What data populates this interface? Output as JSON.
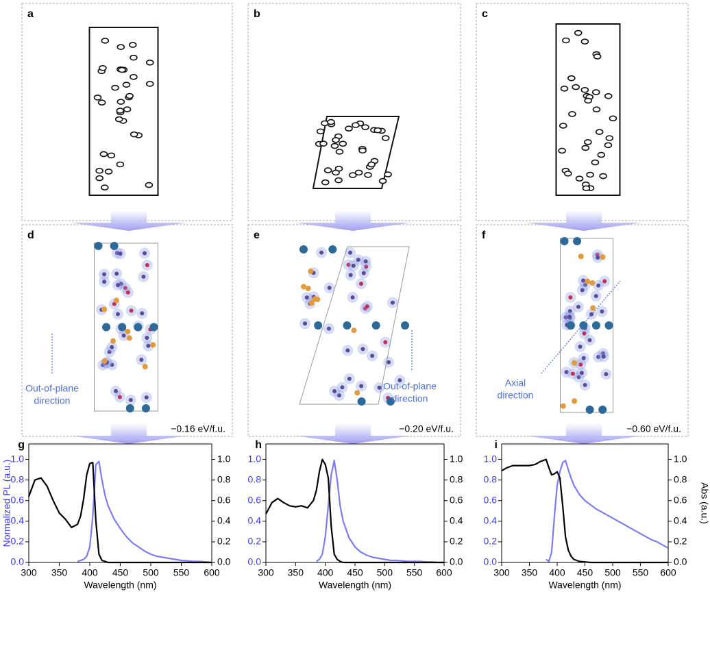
{
  "panels": [
    {
      "label": "a"
    },
    {
      "label": "b"
    },
    {
      "label": "c"
    },
    {
      "label": "d",
      "direction": [
        "Out-of-plane",
        "direction"
      ],
      "energy": "−0.16 eV/f.u."
    },
    {
      "label": "e",
      "direction": [
        "Out-of-plane",
        "direction"
      ],
      "energy": "−0.20 eV/f.u."
    },
    {
      "label": "f",
      "direction": [
        "Axial",
        "direction"
      ],
      "energy": "−0.60 eV/f.u."
    }
  ],
  "chart_data": [
    {
      "type": "line",
      "panel_label": "g",
      "xlabel": "Wavelength (nm)",
      "ylabel": "Normalized PL (a.u.)",
      "xlim": [
        300,
        600
      ],
      "xticks": [
        300,
        350,
        400,
        450,
        500,
        550,
        600
      ],
      "ylim": [
        0,
        1.15
      ],
      "yticks": [
        {
          "value": 0,
          "label": "0.0"
        },
        0.2,
        0.4,
        0.6,
        0.8,
        {
          "value": 1,
          "label": "1.0"
        }
      ],
      "y2lim": [
        0,
        1.15
      ],
      "y2ticks": [
        {
          "value": 0,
          "label": "0.0"
        },
        0.2,
        0.4,
        0.6,
        0.8,
        {
          "value": 1,
          "label": "1.0"
        }
      ],
      "x": [
        300,
        310,
        320,
        330,
        340,
        350,
        360,
        370,
        380,
        385,
        390,
        395,
        400,
        405,
        410,
        415,
        420,
        425,
        430,
        440,
        450,
        460,
        470,
        480,
        490,
        500,
        510,
        520,
        530,
        540,
        550,
        560,
        570,
        580,
        590,
        600
      ],
      "series": [
        {
          "color": "#7b7cf0",
          "axis": "y",
          "values": [
            null,
            null,
            null,
            null,
            null,
            null,
            null,
            null,
            0.01,
            0.02,
            0.03,
            0.06,
            0.15,
            0.45,
            0.95,
            0.98,
            0.8,
            0.65,
            0.55,
            0.42,
            0.33,
            0.25,
            0.19,
            0.15,
            0.11,
            0.08,
            0.06,
            0.05,
            0.04,
            0.03,
            0.02,
            0.015,
            0.01,
            0.01,
            0.005,
            0
          ]
        },
        {
          "color": "#000000",
          "axis": "y2",
          "values": [
            0.64,
            0.8,
            0.82,
            0.74,
            0.6,
            0.48,
            0.42,
            0.34,
            0.37,
            0.45,
            0.62,
            0.85,
            0.96,
            0.97,
            0.4,
            0.08,
            0.02,
            0.01,
            0,
            0,
            0,
            0,
            0,
            0,
            0,
            0,
            0,
            0,
            0,
            0,
            0,
            0,
            0,
            0,
            0,
            0
          ]
        }
      ]
    },
    {
      "type": "line",
      "panel_label": "h",
      "xlabel": "Wavelength (nm)",
      "xlim": [
        300,
        600
      ],
      "xticks": [
        300,
        350,
        400,
        450,
        500,
        550,
        600
      ],
      "ylim": [
        0,
        1.15
      ],
      "yticks": [
        {
          "value": 0,
          "label": "0.0"
        },
        0.2,
        0.4,
        0.6,
        0.8,
        {
          "value": 1,
          "label": "1.0"
        }
      ],
      "y2lim": [
        0,
        1.15
      ],
      "y2ticks": [
        {
          "value": 0,
          "label": "0.0"
        },
        0.2,
        0.4,
        0.6,
        0.8,
        {
          "value": 1,
          "label": "1.0"
        }
      ],
      "x": [
        300,
        310,
        320,
        330,
        340,
        350,
        360,
        370,
        380,
        385,
        390,
        395,
        400,
        405,
        410,
        415,
        420,
        425,
        430,
        440,
        450,
        460,
        470,
        480,
        490,
        500,
        510,
        520,
        530,
        540,
        550,
        560,
        570,
        580,
        590,
        600
      ],
      "series": [
        {
          "color": "#7b7cf0",
          "axis": "y",
          "values": [
            null,
            null,
            null,
            null,
            null,
            null,
            null,
            null,
            null,
            0.01,
            0.03,
            0.08,
            0.25,
            0.55,
            0.85,
            0.99,
            0.8,
            0.55,
            0.4,
            0.24,
            0.15,
            0.1,
            0.07,
            0.05,
            0.04,
            0.03,
            0.02,
            0.02,
            0.015,
            0.01,
            0.01,
            0.01,
            0.005,
            0.005,
            0,
            0
          ]
        },
        {
          "color": "#000000",
          "axis": "y2",
          "values": [
            0.47,
            0.58,
            0.62,
            0.58,
            0.55,
            0.54,
            0.55,
            0.53,
            0.6,
            0.7,
            0.88,
            1,
            0.95,
            0.82,
            0.35,
            0.08,
            0.03,
            0.01,
            0,
            0,
            0,
            0,
            0,
            0,
            0,
            0,
            0,
            0,
            0,
            0,
            0,
            0,
            0,
            0,
            0,
            0
          ]
        }
      ]
    },
    {
      "type": "line",
      "panel_label": "i",
      "xlabel": "Wavelength (nm)",
      "y2label": "Abs (a.u.)",
      "xlim": [
        300,
        600
      ],
      "xticks": [
        300,
        350,
        400,
        450,
        500,
        550,
        600
      ],
      "ylim": [
        0,
        1.15
      ],
      "yticks": [
        {
          "value": 0,
          "label": "0.0"
        },
        0.2,
        0.4,
        0.6,
        0.8,
        {
          "value": 1,
          "label": "1.0"
        }
      ],
      "y2lim": [
        0,
        1.15
      ],
      "y2ticks": [
        {
          "value": 0,
          "label": "0.0"
        },
        0.2,
        0.4,
        0.6,
        0.8,
        {
          "value": 1,
          "label": "1.0"
        }
      ],
      "x": [
        300,
        310,
        320,
        330,
        340,
        350,
        360,
        370,
        380,
        385,
        390,
        395,
        400,
        405,
        410,
        415,
        420,
        425,
        430,
        440,
        450,
        460,
        470,
        480,
        490,
        500,
        510,
        520,
        530,
        540,
        550,
        560,
        570,
        580,
        590,
        600
      ],
      "series": [
        {
          "color": "#7b7cf0",
          "axis": "y",
          "values": [
            null,
            null,
            null,
            null,
            null,
            null,
            null,
            null,
            0.03,
            0.01,
            0.1,
            0.45,
            0.75,
            0.88,
            0.97,
            0.99,
            0.9,
            0.82,
            0.75,
            0.66,
            0.6,
            0.56,
            0.52,
            0.49,
            0.46,
            0.43,
            0.4,
            0.37,
            0.34,
            0.31,
            0.28,
            0.25,
            0.22,
            0.2,
            0.17,
            0.14
          ]
        },
        {
          "color": "#000000",
          "axis": "y2",
          "values": [
            0.89,
            0.92,
            0.94,
            0.94,
            0.94,
            0.94,
            0.95,
            0.98,
            1,
            0.92,
            0.85,
            0.86,
            0.88,
            0.82,
            0.55,
            0.25,
            0.12,
            0.06,
            0.03,
            0.01,
            0.005,
            0,
            0,
            0,
            0,
            0,
            0,
            0,
            0,
            0,
            0,
            0,
            0,
            0,
            0,
            0
          ]
        }
      ]
    }
  ]
}
